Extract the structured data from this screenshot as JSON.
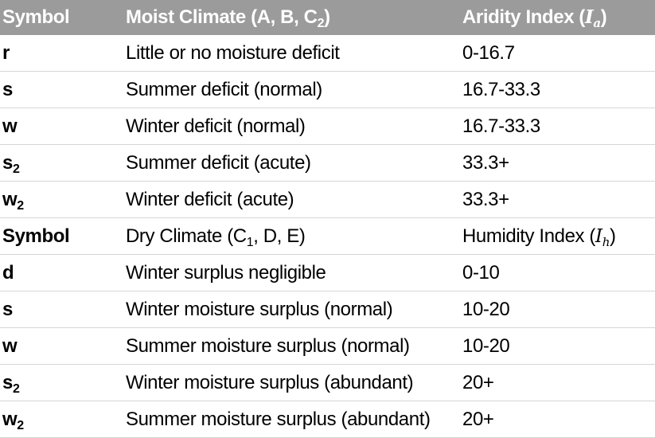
{
  "header": {
    "symbol": "Symbol",
    "moist_label": "Moist Climate (A, B, C",
    "moist_sub": "2",
    "moist_close": ")",
    "aridity_label": "Aridity Index (",
    "aridity_var": "I",
    "aridity_sub": "a",
    "aridity_close": ")"
  },
  "moist_rows": [
    {
      "symbol": "r",
      "sub": "",
      "description": "Little or no moisture deficit",
      "index": "0-16.7"
    },
    {
      "symbol": "s",
      "sub": "",
      "description": "Summer deficit (normal)",
      "index": "16.7-33.3"
    },
    {
      "symbol": "w",
      "sub": "",
      "description": "Winter deficit (normal)",
      "index": "16.7-33.3"
    },
    {
      "symbol": "s",
      "sub": "2",
      "description": "Summer deficit (acute)",
      "index": "33.3+"
    },
    {
      "symbol": "w",
      "sub": "2",
      "description": "Winter deficit (acute)",
      "index": "33.3+"
    }
  ],
  "dry_header": {
    "symbol": "Symbol",
    "dry_label": "Dry Climate (C",
    "dry_sub": "1",
    "dry_rest": ", D, E)",
    "humidity_label": "Humidity Index (",
    "humidity_var": "I",
    "humidity_sub": "h",
    "humidity_close": ")"
  },
  "dry_rows": [
    {
      "symbol": "d",
      "sub": "",
      "description": "Winter surplus negligible",
      "index": "0-10"
    },
    {
      "symbol": "s",
      "sub": "",
      "description": "Winter moisture surplus (normal)",
      "index": "10-20"
    },
    {
      "symbol": "w",
      "sub": "",
      "description": "Summer moisture surplus (normal)",
      "index": "10-20"
    },
    {
      "symbol": "s",
      "sub": "2",
      "description": "Winter moisture surplus (abundant)",
      "index": "20+"
    },
    {
      "symbol": "w",
      "sub": "2",
      "description": "Summer moisture surplus (abundant)",
      "index": "20+"
    }
  ]
}
